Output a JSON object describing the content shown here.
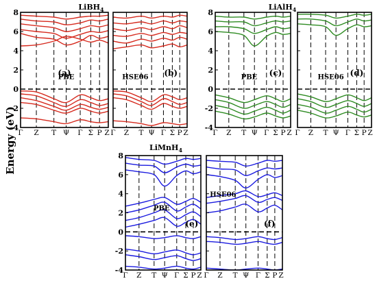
{
  "ylabel": "Energy (eV)",
  "k_labels": [
    "Γ",
    "Z",
    "T",
    "Ψ",
    "Γ",
    "Σ",
    "P",
    "Z"
  ],
  "k_positions": [
    0,
    0.18,
    0.38,
    0.52,
    0.68,
    0.8,
    0.9,
    1.0
  ],
  "y_range": [
    -4,
    8
  ],
  "y_ticks": [
    -4,
    -2,
    0,
    2,
    4,
    6,
    8
  ],
  "fermi_level": 0,
  "groups": [
    {
      "title_base": "LiBH",
      "title_sub": "4",
      "color": "#d62a1e"
    },
    {
      "title_base": "LiAlH",
      "title_sub": "4",
      "color": "#2e8b22"
    },
    {
      "title_base": "LiMnH",
      "title_sub": "4",
      "color": "#1a1adf"
    }
  ],
  "chart_data": [
    {
      "type": "line",
      "material": "LiBH4",
      "method": "PBE",
      "panel_label": "(a)",
      "color": "#d62a1e",
      "x": [
        0,
        0.18,
        0.38,
        0.52,
        0.68,
        0.8,
        0.9,
        1.0
      ],
      "series": [
        {
          "values": [
            -3.0,
            -3.1,
            -3.4,
            -3.6,
            -3.2,
            -3.4,
            -3.5,
            -3.4
          ]
        },
        {
          "values": [
            -0.2,
            -0.3,
            -1.0,
            -1.4,
            -0.6,
            -0.9,
            -1.2,
            -1.0
          ]
        },
        {
          "values": [
            -0.5,
            -0.7,
            -1.4,
            -1.8,
            -1.1,
            -1.4,
            -1.7,
            -1.5
          ]
        },
        {
          "values": [
            -0.9,
            -1.2,
            -1.8,
            -2.2,
            -1.6,
            -1.9,
            -2.1,
            -1.9
          ]
        },
        {
          "values": [
            -1.4,
            -1.6,
            -2.2,
            -2.5,
            -2.0,
            -2.3,
            -2.5,
            -2.3
          ]
        },
        {
          "values": [
            5.8,
            5.4,
            5.2,
            4.6,
            5.0,
            5.6,
            5.3,
            5.5
          ]
        },
        {
          "values": [
            6.2,
            6.0,
            5.8,
            5.3,
            5.7,
            6.0,
            5.9,
            6.1
          ]
        },
        {
          "values": [
            6.8,
            6.6,
            6.4,
            6.0,
            6.3,
            6.6,
            6.5,
            6.7
          ]
        },
        {
          "values": [
            7.3,
            7.1,
            7.0,
            6.7,
            6.9,
            7.2,
            7.1,
            7.3
          ]
        },
        {
          "values": [
            7.7,
            7.6,
            7.5,
            7.3,
            7.5,
            7.6,
            7.6,
            7.7
          ]
        },
        {
          "values": [
            4.5,
            4.6,
            5.0,
            5.5,
            5.2,
            4.9,
            5.1,
            4.8
          ]
        }
      ]
    },
    {
      "type": "line",
      "material": "LiBH4",
      "method": "HSE06",
      "panel_label": "(b)",
      "color": "#d62a1e",
      "x": [
        0,
        0.18,
        0.38,
        0.52,
        0.68,
        0.8,
        0.9,
        1.0
      ],
      "series": [
        {
          "values": [
            -3.3,
            -3.4,
            -3.6,
            -3.8,
            -3.5,
            -3.6,
            -3.7,
            -3.6
          ]
        },
        {
          "values": [
            -0.2,
            -0.3,
            -0.9,
            -1.3,
            -0.6,
            -0.8,
            -1.1,
            -0.9
          ]
        },
        {
          "values": [
            -0.5,
            -0.7,
            -1.3,
            -1.7,
            -1.0,
            -1.3,
            -1.6,
            -1.4
          ]
        },
        {
          "values": [
            -0.9,
            -1.1,
            -1.7,
            -2.1,
            -1.5,
            -1.8,
            -2.0,
            -1.8
          ]
        },
        {
          "values": [
            4.2,
            4.4,
            4.6,
            4.3,
            4.5,
            4.7,
            4.4,
            4.6
          ]
        },
        {
          "values": [
            5.0,
            4.8,
            5.2,
            5.0,
            5.3,
            5.1,
            5.4,
            5.2
          ]
        },
        {
          "values": [
            5.6,
            5.5,
            5.8,
            5.6,
            5.9,
            5.7,
            5.9,
            5.8
          ]
        },
        {
          "values": [
            6.3,
            6.1,
            6.4,
            6.2,
            6.5,
            6.3,
            6.6,
            6.4
          ]
        },
        {
          "values": [
            6.9,
            6.8,
            7.0,
            6.8,
            7.1,
            6.9,
            7.1,
            7.0
          ]
        },
        {
          "values": [
            7.5,
            7.4,
            7.6,
            7.4,
            7.6,
            7.5,
            7.7,
            7.6
          ]
        }
      ]
    },
    {
      "type": "line",
      "material": "LiAlH4",
      "method": "PBE",
      "panel_label": "(c)",
      "color": "#2e8b22",
      "x": [
        0,
        0.18,
        0.38,
        0.52,
        0.68,
        0.8,
        0.9,
        1.0
      ],
      "series": [
        {
          "values": [
            -0.6,
            -0.9,
            -1.4,
            -1.1,
            -0.7,
            -1.0,
            -1.3,
            -1.0
          ]
        },
        {
          "values": [
            -1.1,
            -1.4,
            -2.0,
            -1.7,
            -1.3,
            -1.6,
            -1.9,
            -1.6
          ]
        },
        {
          "values": [
            -1.7,
            -2.0,
            -2.6,
            -2.3,
            -1.9,
            -2.2,
            -2.5,
            -2.2
          ]
        },
        {
          "values": [
            -2.3,
            -2.6,
            -3.1,
            -2.9,
            -2.5,
            -2.8,
            -3.0,
            -2.8
          ]
        },
        {
          "values": [
            6.0,
            5.9,
            5.6,
            4.5,
            5.5,
            5.9,
            5.7,
            5.8
          ]
        },
        {
          "values": [
            6.5,
            6.5,
            6.3,
            5.8,
            6.2,
            6.5,
            6.3,
            6.4
          ]
        },
        {
          "values": [
            7.1,
            7.0,
            7.0,
            6.6,
            6.9,
            7.1,
            7.0,
            7.1
          ]
        },
        {
          "values": [
            7.6,
            7.5,
            7.5,
            7.3,
            7.5,
            7.6,
            7.5,
            7.6
          ]
        }
      ]
    },
    {
      "type": "line",
      "material": "LiAlH4",
      "method": "HSE06",
      "panel_label": "(d)",
      "color": "#2e8b22",
      "x": [
        0,
        0.18,
        0.38,
        0.52,
        0.68,
        0.8,
        0.9,
        1.0
      ],
      "series": [
        {
          "values": [
            -0.5,
            -0.8,
            -1.3,
            -1.0,
            -0.6,
            -0.9,
            -1.2,
            -0.9
          ]
        },
        {
          "values": [
            -1.0,
            -1.3,
            -1.9,
            -1.6,
            -1.2,
            -1.5,
            -1.8,
            -1.5
          ]
        },
        {
          "values": [
            -1.6,
            -1.9,
            -2.5,
            -2.2,
            -1.8,
            -2.1,
            -2.4,
            -2.1
          ]
        },
        {
          "values": [
            -2.2,
            -2.5,
            -3.0,
            -2.8,
            -2.4,
            -2.7,
            -2.9,
            -2.7
          ]
        },
        {
          "values": [
            6.8,
            6.7,
            6.5,
            5.6,
            6.3,
            6.7,
            6.5,
            6.6
          ]
        },
        {
          "values": [
            7.3,
            7.3,
            7.1,
            6.6,
            7.0,
            7.3,
            7.1,
            7.2
          ]
        },
        {
          "values": [
            7.8,
            7.8,
            7.7,
            7.4,
            7.6,
            7.8,
            7.7,
            7.8
          ]
        }
      ]
    },
    {
      "type": "line",
      "material": "LiMnH4",
      "method": "PBE",
      "panel_label": "(e)",
      "color": "#1a1adf",
      "x": [
        0,
        0.18,
        0.38,
        0.52,
        0.68,
        0.8,
        0.9,
        1.0
      ],
      "series": [
        {
          "values": [
            -0.4,
            -0.5,
            -0.7,
            -0.6,
            -0.4,
            -0.6,
            -0.7,
            -0.5
          ]
        },
        {
          "values": [
            -1.8,
            -2.0,
            -2.3,
            -2.1,
            -1.9,
            -2.2,
            -2.4,
            -2.2
          ]
        },
        {
          "values": [
            -2.4,
            -2.6,
            -2.9,
            -2.7,
            -2.5,
            -2.8,
            -3.0,
            -2.8
          ]
        },
        {
          "values": [
            -3.6,
            -3.7,
            -3.9,
            -3.8,
            -3.6,
            -3.8,
            -3.9,
            -3.7
          ]
        },
        {
          "values": [
            0.5,
            0.8,
            1.2,
            1.5,
            0.6,
            1.0,
            1.3,
            0.8
          ]
        },
        {
          "values": [
            1.2,
            1.5,
            2.0,
            2.3,
            1.4,
            1.8,
            2.1,
            1.6
          ]
        },
        {
          "values": [
            2.0,
            2.3,
            2.8,
            3.1,
            2.2,
            2.6,
            2.9,
            2.4
          ]
        },
        {
          "values": [
            2.7,
            3.0,
            3.4,
            3.6,
            2.9,
            3.2,
            3.5,
            3.1
          ]
        },
        {
          "values": [
            6.5,
            6.3,
            6.0,
            4.8,
            5.9,
            6.4,
            6.1,
            6.3
          ]
        },
        {
          "values": [
            7.2,
            7.0,
            6.9,
            6.2,
            6.8,
            7.1,
            6.9,
            7.0
          ]
        },
        {
          "values": [
            7.8,
            7.6,
            7.5,
            7.1,
            7.4,
            7.7,
            7.6,
            7.7
          ]
        }
      ]
    },
    {
      "type": "line",
      "material": "LiMnH4",
      "method": "HSE06",
      "panel_label": "(f)",
      "color": "#1a1adf",
      "x": [
        0,
        0.18,
        0.38,
        0.52,
        0.68,
        0.8,
        0.9,
        1.0
      ],
      "series": [
        {
          "values": [
            -0.5,
            -0.6,
            -0.8,
            -0.7,
            -0.5,
            -0.7,
            -0.8,
            -0.6
          ]
        },
        {
          "values": [
            -1.0,
            -1.1,
            -1.3,
            -1.2,
            -1.0,
            -1.2,
            -1.3,
            -1.1
          ]
        },
        {
          "values": [
            -3.8,
            -3.9,
            -4.0,
            -3.9,
            -3.8,
            -3.9,
            -4.0,
            -3.9
          ]
        },
        {
          "values": [
            2.0,
            2.2,
            2.6,
            2.9,
            2.1,
            2.5,
            2.8,
            2.3
          ]
        },
        {
          "values": [
            3.0,
            3.2,
            3.5,
            3.8,
            3.1,
            3.4,
            3.6,
            3.3
          ]
        },
        {
          "values": [
            3.6,
            3.8,
            4.0,
            4.3,
            3.7,
            3.9,
            4.1,
            3.8
          ]
        },
        {
          "values": [
            6.0,
            5.8,
            5.4,
            4.6,
            5.5,
            6.0,
            5.7,
            5.9
          ]
        },
        {
          "values": [
            6.8,
            6.6,
            6.5,
            5.9,
            6.4,
            6.7,
            6.6,
            6.7
          ]
        },
        {
          "values": [
            7.5,
            7.4,
            7.3,
            6.9,
            7.2,
            7.5,
            7.4,
            7.5
          ]
        }
      ]
    }
  ]
}
